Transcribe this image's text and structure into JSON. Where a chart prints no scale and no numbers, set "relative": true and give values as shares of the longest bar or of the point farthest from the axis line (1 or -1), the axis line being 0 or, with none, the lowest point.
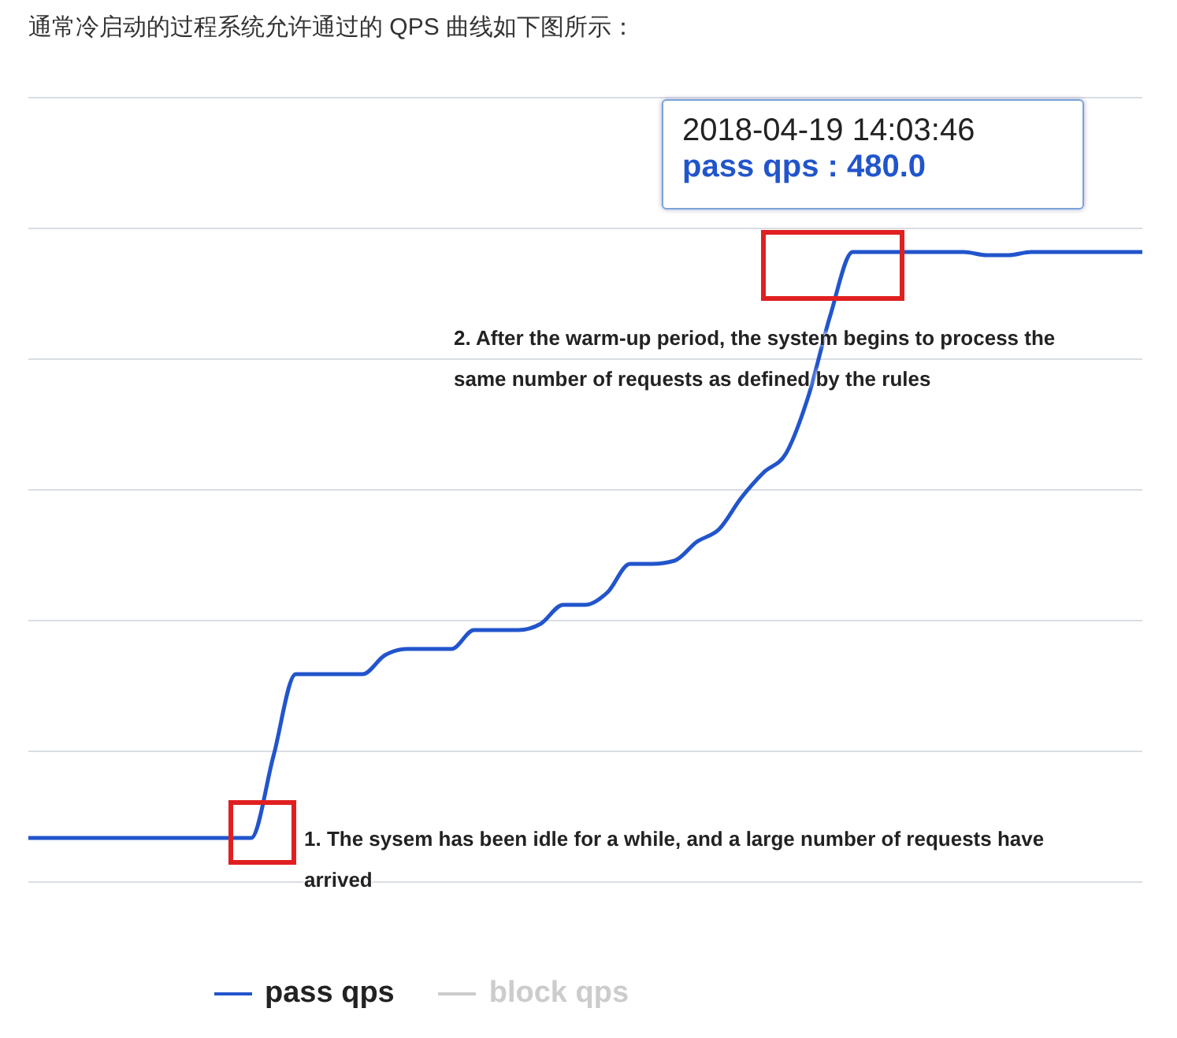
{
  "chart_data": {
    "type": "line",
    "relative": true,
    "title": "通常冷启动的过程系统允许通过的 QPS 曲线如下图所示：",
    "categories": [
      null,
      null,
      null,
      null,
      null,
      null,
      null,
      null,
      null,
      null,
      null,
      null,
      null,
      null,
      null,
      null,
      null,
      null,
      null,
      null,
      null,
      null,
      null,
      null,
      null,
      null,
      null,
      null,
      null,
      null,
      null,
      null,
      null,
      null,
      null,
      null,
      null,
      null,
      null,
      null,
      null,
      null,
      null,
      null,
      null,
      null,
      null,
      null,
      null,
      null,
      null
    ],
    "series": [
      {
        "name": "pass qps",
        "color": "#2255cc",
        "values": [
          0.07,
          0.07,
          0.07,
          0.07,
          0.07,
          0.07,
          0.07,
          0.07,
          0.07,
          0.07,
          0.07,
          0.2,
          0.33,
          0.33,
          0.33,
          0.33,
          0.36,
          0.37,
          0.37,
          0.37,
          0.4,
          0.4,
          0.4,
          0.41,
          0.44,
          0.44,
          0.46,
          0.505,
          0.505,
          0.51,
          0.54,
          0.56,
          0.61,
          0.65,
          0.68,
          0.77,
          0.9,
          1,
          1,
          1,
          1,
          1,
          1,
          0.995,
          0.995,
          1,
          1,
          1,
          1,
          1,
          1
        ]
      },
      {
        "name": "block qps",
        "color": "#cccccc",
        "values": [
          null,
          null,
          null,
          null,
          null,
          null,
          null,
          null,
          null,
          null,
          null,
          null,
          null,
          null,
          null,
          null,
          null,
          null,
          null,
          null,
          null,
          null,
          null,
          null,
          null,
          null,
          null,
          null,
          null,
          null,
          null,
          null,
          null,
          null,
          null,
          null,
          null,
          null,
          null,
          null,
          null,
          null,
          null,
          null,
          null,
          null,
          null,
          null,
          null,
          null,
          null
        ]
      }
    ],
    "annotations": [
      "2018-04-19 14:03:46",
      "pass qps : 480.0",
      "2. After the warm-up period, the system begins to process the same number of requests as defined by the rules",
      "1. The sysem has been idle for a while, and a large number of requests have arrived"
    ],
    "grid": "y",
    "legend": "bottom",
    "marker": "none",
    "line_style": "solid"
  }
}
